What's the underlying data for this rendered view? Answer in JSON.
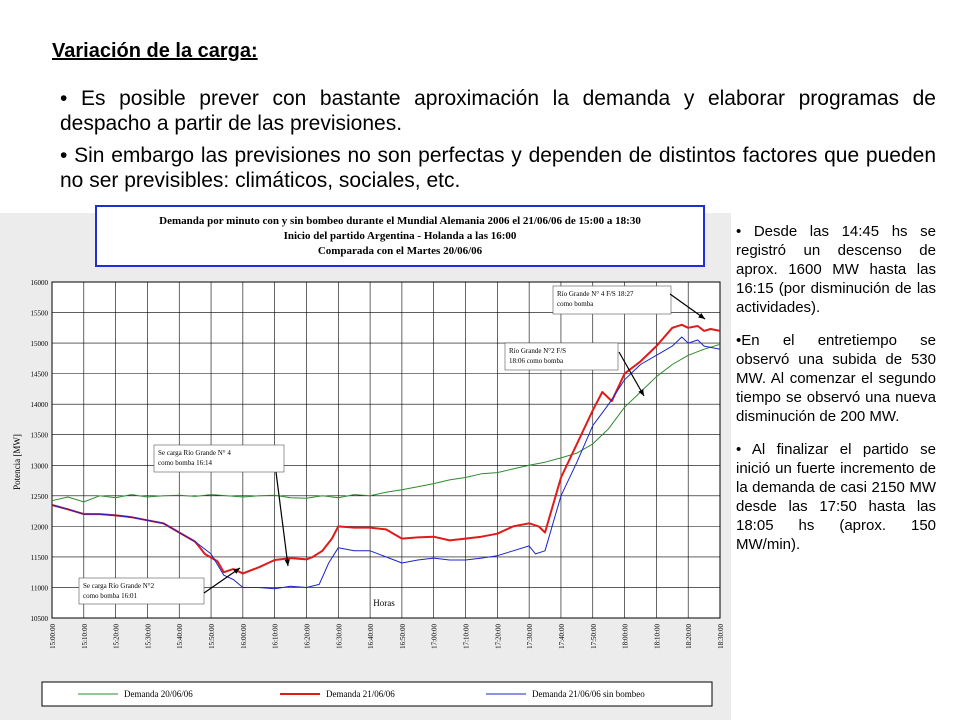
{
  "slide": {
    "title": "Variación de la carga:",
    "bullets": [
      "• Es posible prever con bastante aproximación la demanda y elaborar programas de despacho a partir de las previsiones.",
      "• Sin embargo las previsiones no son perfectas y dependen de distintos factores que pueden no ser previsibles: climáticos, sociales, etc."
    ],
    "side_notes": [
      "• Desde las 14:45 hs se registró un descenso de aprox. 1600 MW hasta las 16:15 (por disminución de las actividades).",
      "•En el entretiempo se observó una subida de 530 MW. Al comenzar el segundo tiempo se observó una nueva disminución de 200 MW.",
      "• Al finalizar el partido se inició un fuerte incremento de la demanda de casi 2150 MW desde las 17:50 hasta las 18:05 hs (aprox. 150 MW/min)."
    ]
  },
  "chart_data": {
    "type": "line",
    "title_lines": [
      "Demanda por minuto con y sin bombeo durante el Mundial Alemania 2006 el 21/06/06 de 15:00 a 18:30",
      "Inicio del partido Argentina - Holanda a las 16:00",
      "Comparada con el Martes 20/06/06"
    ],
    "ylabel": "Potencia [MW]",
    "xlabel": "Horas",
    "ylim": [
      10500,
      16000
    ],
    "yticks": [
      "16000",
      "15500",
      "15000",
      "14500",
      "14000",
      "13500",
      "13000",
      "12500",
      "12000",
      "11500",
      "11000",
      "10500"
    ],
    "x_ticks": [
      "15:00:00",
      "15:10:00",
      "15:20:00",
      "15:30:00",
      "15:40:00",
      "15:50:00",
      "16:00:00",
      "16:10:00",
      "16:20:00",
      "16:30:00",
      "16:40:00",
      "16:50:00",
      "17:00:00",
      "17:10:00",
      "17:20:00",
      "17:30:00",
      "17:40:00",
      "17:50:00",
      "18:00:00",
      "18:10:00",
      "18:20:00",
      "18:30:00"
    ],
    "grid": true,
    "legend_position": "bottom",
    "series": [
      {
        "name": "Demanda 20/06/06",
        "color": "#2e8b2e",
        "x": [
          0,
          5,
          10,
          15,
          20,
          25,
          30,
          35,
          40,
          45,
          50,
          55,
          60,
          65,
          70,
          75,
          80,
          85,
          90,
          95,
          100,
          105,
          110,
          115,
          120,
          125,
          130,
          135,
          140,
          145,
          150,
          155,
          160,
          165,
          170,
          175,
          180,
          185,
          190,
          195,
          200,
          205,
          210
        ],
        "y": [
          12420,
          12480,
          12400,
          12500,
          12470,
          12520,
          12480,
          12500,
          12510,
          12490,
          12520,
          12500,
          12480,
          12500,
          12510,
          12470,
          12460,
          12500,
          12470,
          12520,
          12500,
          12560,
          12600,
          12650,
          12700,
          12760,
          12800,
          12860,
          12880,
          12940,
          13000,
          13050,
          13120,
          13200,
          13350,
          13600,
          13950,
          14200,
          14450,
          14650,
          14800,
          14900,
          14980
        ]
      },
      {
        "name": "Demanda 21/06/06",
        "color": "#e11a1a",
        "x": [
          0,
          5,
          10,
          15,
          20,
          25,
          30,
          35,
          40,
          45,
          47,
          48,
          52,
          54,
          57,
          60,
          65,
          70,
          75,
          80,
          82,
          85,
          88,
          90,
          95,
          100,
          105,
          110,
          115,
          120,
          125,
          130,
          135,
          140,
          145,
          150,
          153,
          155,
          160,
          165,
          170,
          173,
          176,
          180,
          185,
          190,
          195,
          198,
          200,
          203,
          205,
          207,
          210
        ],
        "y": [
          12350,
          12280,
          12200,
          12200,
          12180,
          12150,
          12100,
          12050,
          11900,
          11750,
          11620,
          11550,
          11430,
          11250,
          11300,
          11230,
          11330,
          11450,
          11480,
          11460,
          11500,
          11600,
          11800,
          12000,
          11980,
          11980,
          11950,
          11800,
          11820,
          11830,
          11770,
          11800,
          11830,
          11880,
          12000,
          12050,
          12000,
          11900,
          12800,
          13350,
          13900,
          14200,
          14050,
          14500,
          14700,
          14950,
          15250,
          15300,
          15250,
          15280,
          15200,
          15230,
          15200
        ]
      },
      {
        "name": "Demanda 21/06/06 sin bombeo",
        "color": "#1a24c9",
        "x": [
          0,
          5,
          10,
          15,
          20,
          25,
          30,
          35,
          40,
          45,
          50,
          54,
          57,
          60,
          65,
          70,
          75,
          80,
          84,
          87,
          90,
          95,
          100,
          105,
          110,
          115,
          120,
          125,
          130,
          135,
          140,
          145,
          150,
          152,
          155,
          160,
          165,
          170,
          175,
          180,
          185,
          190,
          195,
          198,
          200,
          203,
          205,
          210
        ],
        "y": [
          12350,
          12280,
          12200,
          12200,
          12180,
          12150,
          12100,
          12050,
          11900,
          11750,
          11550,
          11200,
          11130,
          11000,
          11000,
          10980,
          11020,
          11000,
          11050,
          11400,
          11650,
          11600,
          11600,
          11500,
          11400,
          11450,
          11480,
          11450,
          11450,
          11480,
          11520,
          11600,
          11680,
          11550,
          11600,
          12500,
          13050,
          13650,
          14000,
          14400,
          14650,
          14800,
          14950,
          15100,
          15000,
          15050,
          14950,
          14900
        ]
      }
    ],
    "annotations": [
      {
        "lines": [
          "Río Grande N° 4  F/S 18:27",
          "como bomba"
        ]
      },
      {
        "lines": [
          "Río Grande N°2  F/S",
          "18:06 como bomba"
        ]
      },
      {
        "lines": [
          "Se carga Río Grande N° 4",
          "como bomba 16:14"
        ]
      },
      {
        "lines": [
          "Se carga Río Grande N°2",
          "como bomba 16:01"
        ]
      }
    ]
  }
}
